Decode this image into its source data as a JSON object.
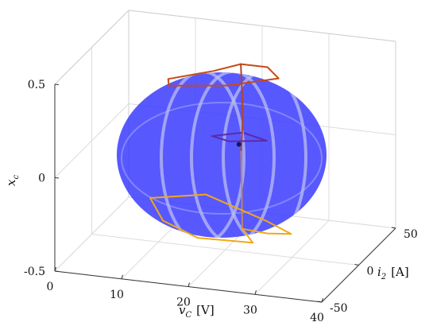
{
  "chart_data": {
    "type": "line",
    "projection": "3d",
    "xlabel": "v",
    "xlabel_sub": "C",
    "xlabel_unit": "[V]",
    "ylabel": "i",
    "ylabel_sub": "2",
    "ylabel_unit": "[A]",
    "zlabel": "x",
    "zlabel_sub": "c",
    "xlim": [
      0,
      40
    ],
    "ylim": [
      -50,
      50
    ],
    "zlim": [
      -0.5,
      0.5
    ],
    "xticks": [
      "0",
      "10",
      "20",
      "30",
      "40"
    ],
    "yticks": [
      "-50",
      "0",
      "50"
    ],
    "zticks": [
      "-0.5",
      "0",
      "0.5"
    ],
    "grid": true,
    "surface": {
      "type": "sphere",
      "color": "#3b3bff",
      "opacity": 0.85,
      "band_color": "#b9bdf0"
    },
    "series": [
      {
        "color": "#c84a14",
        "points": [
          [
            21,
            12,
            0.45
          ],
          [
            18,
            2,
            0.44
          ],
          [
            13,
            -14,
            0.44
          ],
          [
            14,
            -22,
            0.44
          ],
          [
            22,
            -16,
            0.45
          ],
          [
            28,
            0,
            0.45
          ],
          [
            25,
            12,
            0.45
          ],
          [
            21,
            12,
            0.45
          ]
        ]
      },
      {
        "color": "#b2452c",
        "points": [
          [
            21,
            12,
            0.45
          ],
          [
            21.3,
            11,
            0.3
          ],
          [
            21.5,
            10,
            0.15
          ],
          [
            21.5,
            8,
            0.0
          ]
        ]
      },
      {
        "color": "#5a2ca8",
        "points": [
          [
            21.5,
            8,
            0.1
          ],
          [
            18,
            0,
            0.1
          ],
          [
            21,
            -4,
            0.1
          ],
          [
            26,
            2,
            0.1
          ],
          [
            22,
            8,
            0.1
          ]
        ]
      },
      {
        "color": "#0b1a6b",
        "points": [
          [
            21.5,
            5,
            0.05
          ]
        ]
      },
      {
        "color": "#b8856a",
        "points": [
          [
            21.5,
            8,
            0.0
          ],
          [
            21.7,
            7,
            -0.2
          ],
          [
            22,
            5,
            -0.4
          ]
        ]
      },
      {
        "color": "#f0a818",
        "points": [
          [
            22,
            5,
            -0.4
          ],
          [
            25,
            -8,
            -0.41
          ],
          [
            17,
            -10,
            -0.41
          ],
          [
            10,
            6,
            -0.41
          ],
          [
            5,
            34,
            -0.42
          ],
          [
            12,
            46,
            -0.42
          ],
          [
            24,
            20,
            -0.41
          ],
          [
            29,
            8,
            -0.41
          ],
          [
            26,
            3,
            -0.4
          ],
          [
            22,
            5,
            -0.4
          ]
        ]
      }
    ]
  }
}
